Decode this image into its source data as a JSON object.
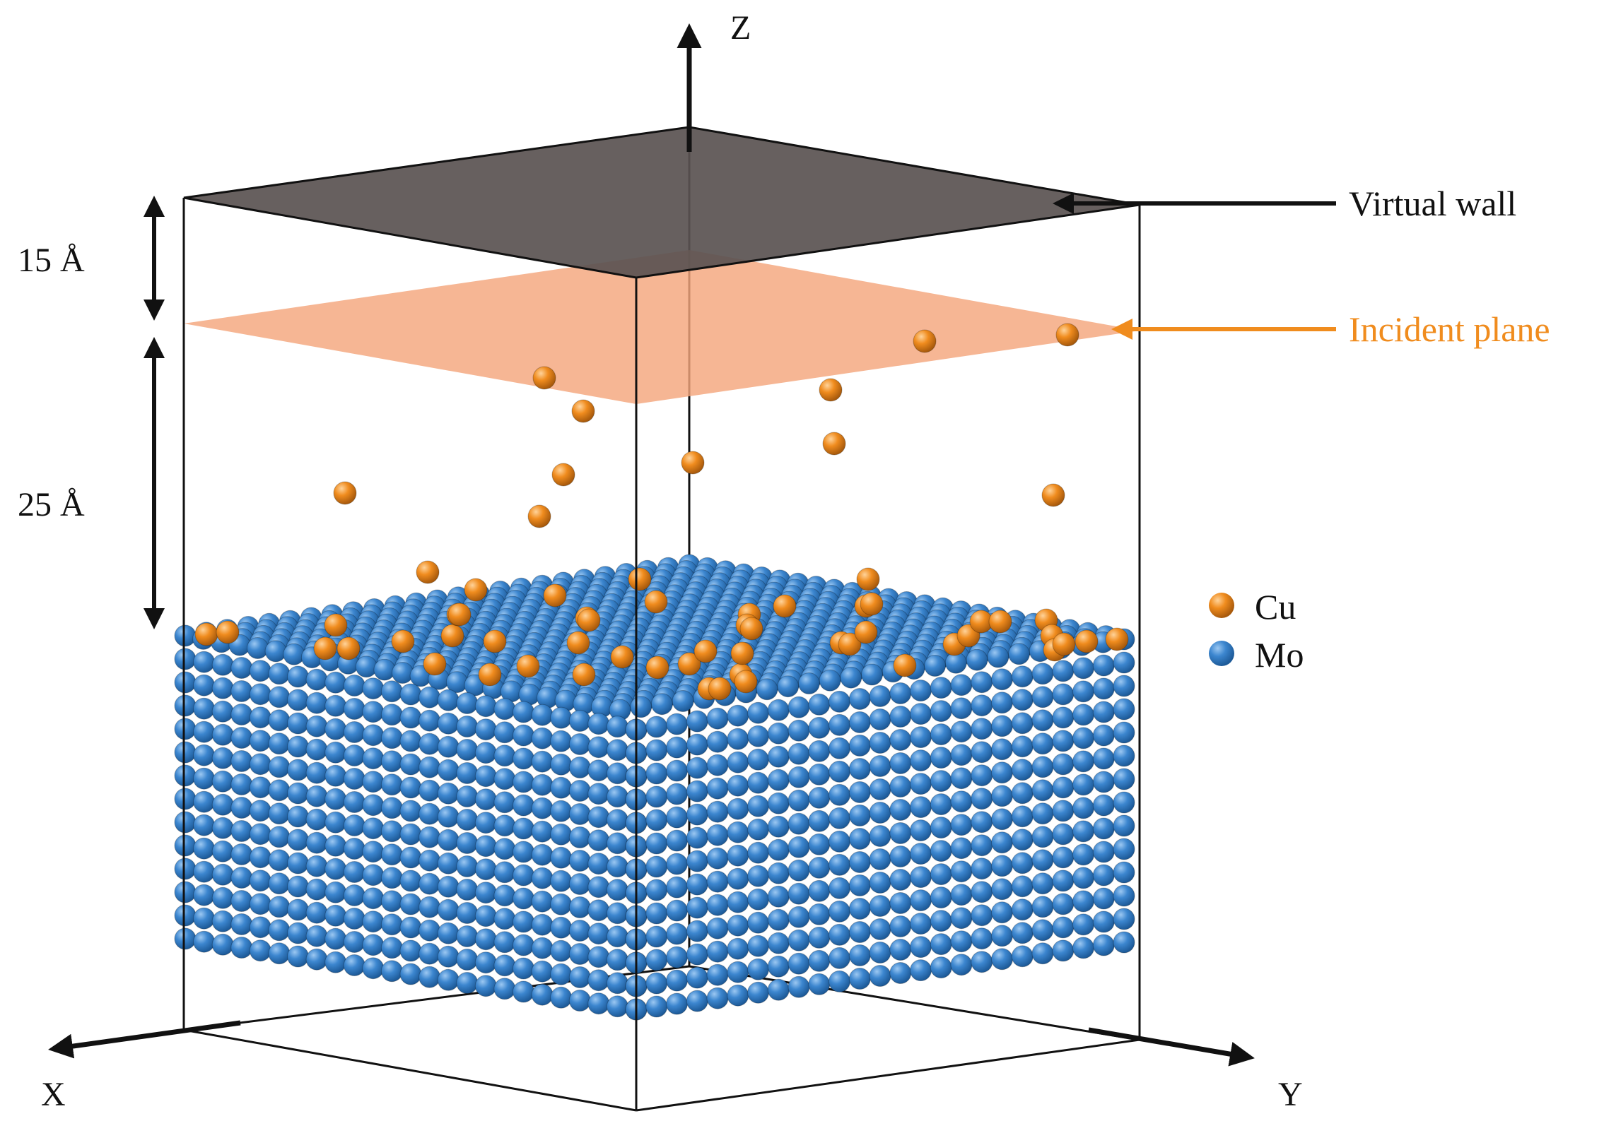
{
  "labels": {
    "z_axis": "Z",
    "x_axis": "X",
    "y_axis": "Y",
    "top_gap": "15 Å",
    "drop_height": "25 Å",
    "virtual_wall": "Virtual wall",
    "incident_plane": "Incident plane"
  },
  "legend": [
    {
      "label": "Cu",
      "color": "#f08c1e"
    },
    {
      "label": "Mo",
      "color": "#3c86cf"
    }
  ],
  "colors": {
    "virtual_wall_fill": "#5a5351",
    "incident_plane_fill": "#f4a67c",
    "incident_label": "#f08c1e",
    "cu_atom": "#f08c1e",
    "mo_atom": "#3c86cf",
    "frame": "#111111"
  }
}
